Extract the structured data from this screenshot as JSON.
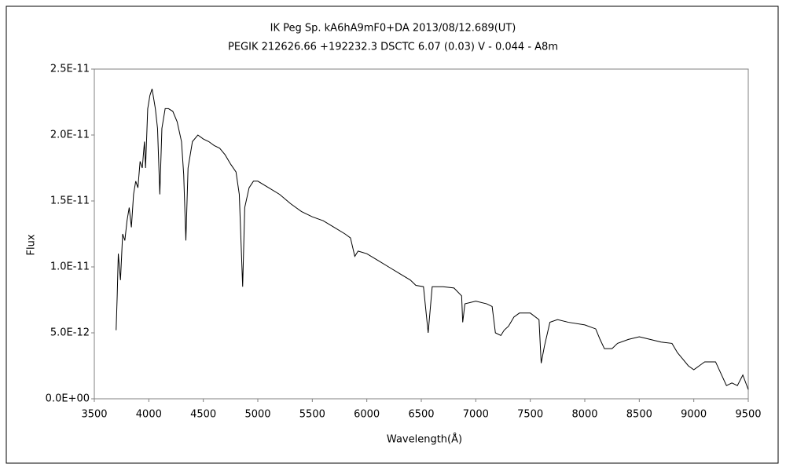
{
  "chart_data": {
    "type": "line",
    "title": "IK Peg    Sp. kA6hA9mF0+DA    2013/08/12.689(UT)",
    "subtitle": "PEGIK 212626.66 +192232.3 DSCTC 6.07 (0.03) V - 0.044 - A8m",
    "x_label": "Wavelength(Å)",
    "y_label": "Flux",
    "xlim": [
      3500,
      9500
    ],
    "xticks": [
      3500,
      4000,
      4500,
      5000,
      5500,
      6000,
      6500,
      7000,
      7500,
      8000,
      8500,
      9000,
      9500
    ],
    "ylim": [
      0,
      2.5e-11
    ],
    "yticks": [
      {
        "value": 0,
        "label": "0.0E+00"
      },
      {
        "value": 5e-12,
        "label": "5.0E-12"
      },
      {
        "value": 1e-11,
        "label": "1.0E-11"
      },
      {
        "value": 1.5e-11,
        "label": "1.5E-11"
      },
      {
        "value": 2e-11,
        "label": "2.0E-11"
      },
      {
        "value": 2.5e-11,
        "label": "2.5E-11"
      }
    ],
    "grid": false,
    "series": [
      {
        "color": "#000000",
        "x": [
          3700,
          3710,
          3720,
          3740,
          3760,
          3780,
          3800,
          3820,
          3840,
          3860,
          3880,
          3900,
          3920,
          3940,
          3960,
          3970,
          3990,
          4010,
          4030,
          4060,
          4080,
          4101,
          4120,
          4150,
          4180,
          4220,
          4260,
          4300,
          4320,
          4340,
          4360,
          4400,
          4450,
          4500,
          4550,
          4600,
          4650,
          4700,
          4750,
          4800,
          4830,
          4861,
          4880,
          4920,
          4960,
          5000,
          5100,
          5200,
          5300,
          5400,
          5500,
          5600,
          5700,
          5800,
          5850,
          5890,
          5920,
          6000,
          6100,
          6200,
          6300,
          6400,
          6450,
          6520,
          6563,
          6600,
          6700,
          6800,
          6870,
          6880,
          6900,
          7000,
          7100,
          7150,
          7180,
          7230,
          7260,
          7300,
          7350,
          7400,
          7500,
          7580,
          7600,
          7630,
          7680,
          7750,
          7850,
          8000,
          8100,
          8140,
          8180,
          8250,
          8300,
          8400,
          8500,
          8600,
          8700,
          8800,
          8850,
          8900,
          8950,
          9000,
          9100,
          9200,
          9300,
          9350,
          9400,
          9450,
          9500
        ],
        "values": [
          5.2e-12,
          7.8e-12,
          1.1e-11,
          9e-12,
          1.25e-11,
          1.2e-11,
          1.35e-11,
          1.45e-11,
          1.3e-11,
          1.55e-11,
          1.65e-11,
          1.6e-11,
          1.8e-11,
          1.75e-11,
          1.95e-11,
          1.75e-11,
          2.2e-11,
          2.3e-11,
          2.35e-11,
          2.2e-11,
          2.05e-11,
          1.55e-11,
          2.05e-11,
          2.2e-11,
          2.2e-11,
          2.18e-11,
          2.1e-11,
          1.95e-11,
          1.7e-11,
          1.2e-11,
          1.75e-11,
          1.95e-11,
          2e-11,
          1.97e-11,
          1.95e-11,
          1.92e-11,
          1.9e-11,
          1.85e-11,
          1.78e-11,
          1.72e-11,
          1.55e-11,
          8.5e-12,
          1.45e-11,
          1.6e-11,
          1.65e-11,
          1.65e-11,
          1.6e-11,
          1.55e-11,
          1.48e-11,
          1.42e-11,
          1.38e-11,
          1.35e-11,
          1.3e-11,
          1.25e-11,
          1.22e-11,
          1.08e-11,
          1.12e-11,
          1.1e-11,
          1.05e-11,
          1e-11,
          9.5e-12,
          9e-12,
          8.6e-12,
          8.5e-12,
          5e-12,
          8.5e-12,
          8.5e-12,
          8.4e-12,
          7.8e-12,
          5.8e-12,
          7.2e-12,
          7.4e-12,
          7.2e-12,
          7e-12,
          5e-12,
          4.8e-12,
          5.2e-12,
          5.5e-12,
          6.2e-12,
          6.5e-12,
          6.5e-12,
          6e-12,
          2.7e-12,
          4e-12,
          5.8e-12,
          6e-12,
          5.8e-12,
          5.6e-12,
          5.3e-12,
          4.5e-12,
          3.8e-12,
          3.8e-12,
          4.2e-12,
          4.5e-12,
          4.7e-12,
          4.5e-12,
          4.3e-12,
          4.2e-12,
          3.5e-12,
          3e-12,
          2.5e-12,
          2.2e-12,
          2.8e-12,
          2.8e-12,
          1e-12,
          1.2e-12,
          1e-12,
          1.8e-12,
          7e-13
        ]
      }
    ]
  }
}
